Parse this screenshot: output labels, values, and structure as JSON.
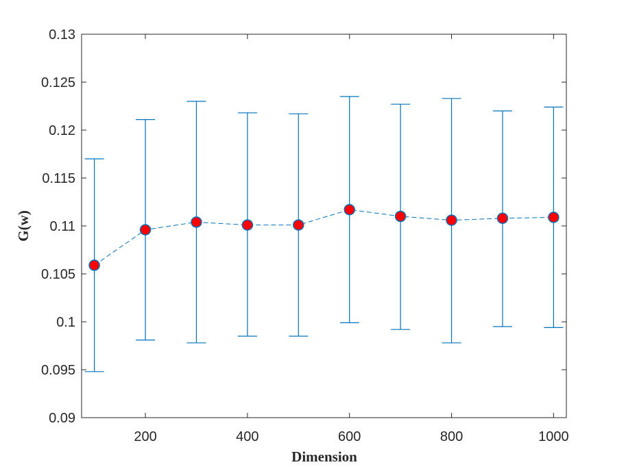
{
  "chart_data": {
    "type": "line",
    "title": "",
    "xlabel": "Dimension",
    "ylabel": "G(w)",
    "xlim": [
      75,
      1025
    ],
    "ylim": [
      0.09,
      0.13
    ],
    "xticks": [
      200,
      400,
      600,
      800,
      1000
    ],
    "xtick_labels": [
      "200",
      "400",
      "600",
      "800",
      "1000"
    ],
    "yticks": [
      0.09,
      0.095,
      0.1,
      0.105,
      0.11,
      0.115,
      0.12,
      0.125,
      0.13
    ],
    "ytick_labels": [
      "0.09",
      "0.095",
      "0.1",
      "0.105",
      "0.11",
      "0.115",
      "0.12",
      "0.125",
      "0.13"
    ],
    "grid": false,
    "x": [
      100,
      200,
      300,
      400,
      500,
      600,
      700,
      800,
      900,
      1000
    ],
    "series": [
      {
        "values": [
          0.1059,
          0.1096,
          0.1104,
          0.1101,
          0.1101,
          0.1117,
          0.111,
          0.1106,
          0.1108,
          0.1109
        ],
        "error_lower": [
          0.0948,
          0.0981,
          0.0978,
          0.0985,
          0.0985,
          0.0999,
          0.0992,
          0.0978,
          0.0995,
          0.0994
        ],
        "error_upper": [
          0.117,
          0.1211,
          0.123,
          0.1218,
          0.1217,
          0.1235,
          0.1227,
          0.1233,
          0.122,
          0.1224
        ],
        "line_style": "dashed",
        "line_color": "#0072BD",
        "marker": "circle",
        "marker_fill": "#FF0000",
        "marker_edge": "#0072BD"
      }
    ]
  }
}
